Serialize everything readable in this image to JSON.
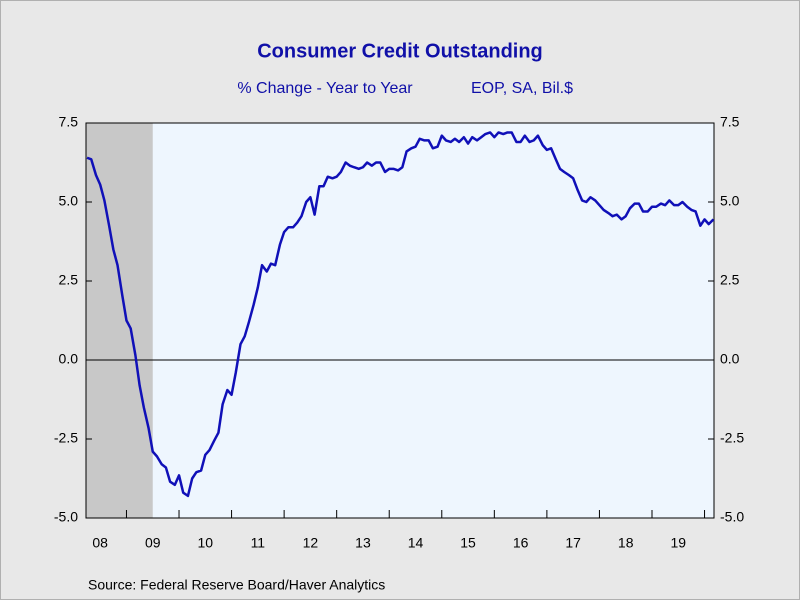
{
  "chart_data": {
    "type": "line",
    "title": "Consumer Credit Outstanding",
    "subtitle": "% Change - Year to Year",
    "subtitle_right": "EOP, SA, Bil.$",
    "source": "Source:  Federal Reserve Board/Haver Analytics",
    "xlim": [
      2008.23,
      2020.18
    ],
    "xticks": [
      {
        "value": 2008.5,
        "label": "08"
      },
      {
        "value": 2009.5,
        "label": "09"
      },
      {
        "value": 2010.5,
        "label": "10"
      },
      {
        "value": 2011.5,
        "label": "11"
      },
      {
        "value": 2012.5,
        "label": "12"
      },
      {
        "value": 2013.5,
        "label": "13"
      },
      {
        "value": 2014.5,
        "label": "14"
      },
      {
        "value": 2015.5,
        "label": "15"
      },
      {
        "value": 2016.5,
        "label": "16"
      },
      {
        "value": 2017.5,
        "label": "17"
      },
      {
        "value": 2018.5,
        "label": "18"
      },
      {
        "value": 2019.5,
        "label": "19"
      }
    ],
    "ylim": [
      -5,
      7.5
    ],
    "yticks": [
      {
        "value": -5,
        "label": "-5.0"
      },
      {
        "value": -2.5,
        "label": "-2.5"
      },
      {
        "value": 0,
        "label": "0.0"
      },
      {
        "value": 2.5,
        "label": "2.5"
      },
      {
        "value": 5,
        "label": "5.0"
      },
      {
        "value": 7.5,
        "label": "7.5"
      }
    ],
    "y2lim": [
      -5,
      7.5
    ],
    "y2ticks": [
      {
        "value": -5,
        "label": "-5.0"
      },
      {
        "value": -2.5,
        "label": "-2.5"
      },
      {
        "value": 0,
        "label": "0.0"
      },
      {
        "value": 2.5,
        "label": "2.5"
      },
      {
        "value": 5,
        "label": "5.0"
      },
      {
        "value": 7.5,
        "label": "7.5"
      }
    ],
    "recession": [
      2007.92,
      2009.5
    ],
    "recession_color": "#c8c8c8",
    "background": "#eef6fe",
    "x": [
      2008.25,
      2008.33,
      2008.42,
      2008.5,
      2008.58,
      2008.67,
      2008.75,
      2008.83,
      2008.92,
      2009,
      2009.08,
      2009.17,
      2009.25,
      2009.33,
      2009.42,
      2009.5,
      2009.58,
      2009.67,
      2009.75,
      2009.83,
      2009.92,
      2010,
      2010.08,
      2010.17,
      2010.25,
      2010.33,
      2010.42,
      2010.5,
      2010.58,
      2010.67,
      2010.75,
      2010.83,
      2010.92,
      2011,
      2011.08,
      2011.17,
      2011.25,
      2011.33,
      2011.42,
      2011.5,
      2011.58,
      2011.67,
      2011.75,
      2011.83,
      2011.92,
      2012,
      2012.08,
      2012.17,
      2012.25,
      2012.33,
      2012.42,
      2012.5,
      2012.58,
      2012.67,
      2012.75,
      2012.83,
      2012.92,
      2013,
      2013.08,
      2013.17,
      2013.25,
      2013.33,
      2013.42,
      2013.5,
      2013.58,
      2013.67,
      2013.75,
      2013.83,
      2013.92,
      2014,
      2014.08,
      2014.17,
      2014.25,
      2014.33,
      2014.42,
      2014.5,
      2014.58,
      2014.67,
      2014.75,
      2014.83,
      2014.92,
      2015,
      2015.08,
      2015.17,
      2015.25,
      2015.33,
      2015.42,
      2015.5,
      2015.58,
      2015.67,
      2015.75,
      2015.83,
      2015.92,
      2016,
      2016.08,
      2016.17,
      2016.25,
      2016.33,
      2016.42,
      2016.5,
      2016.58,
      2016.67,
      2016.75,
      2016.83,
      2016.92,
      2017,
      2017.08,
      2017.17,
      2017.25,
      2017.33,
      2017.42,
      2017.5,
      2017.58,
      2017.67,
      2017.75,
      2017.83,
      2017.92,
      2018,
      2018.08,
      2018.17,
      2018.25,
      2018.33,
      2018.42,
      2018.5,
      2018.58,
      2018.67,
      2018.75,
      2018.83,
      2018.92,
      2019,
      2019.08,
      2019.17,
      2019.25,
      2019.33,
      2019.42,
      2019.5,
      2019.58,
      2019.67,
      2019.75,
      2019.83,
      2019.92,
      2020,
      2020.08,
      2020.17
    ],
    "series": [
      {
        "color": "#1010b8",
        "values": [
          6.4,
          6.35,
          5.85,
          5.55,
          5.05,
          4.25,
          3.5,
          3.0,
          2.05,
          1.25,
          1.0,
          0.15,
          -0.8,
          -1.5,
          -2.15,
          -2.9,
          -3.05,
          -3.3,
          -3.4,
          -3.85,
          -3.95,
          -3.65,
          -4.2,
          -4.3,
          -3.75,
          -3.55,
          -3.5,
          -3.0,
          -2.85,
          -2.55,
          -2.3,
          -1.4,
          -0.95,
          -1.1,
          -0.4,
          0.5,
          0.75,
          1.2,
          1.75,
          2.3,
          3.0,
          2.8,
          3.05,
          3.0,
          3.65,
          4.05,
          4.2,
          4.2,
          4.35,
          4.55,
          5.0,
          5.15,
          4.6,
          5.5,
          5.5,
          5.8,
          5.75,
          5.8,
          5.95,
          6.25,
          6.15,
          6.1,
          6.05,
          6.1,
          6.25,
          6.15,
          6.25,
          6.25,
          5.95,
          6.05,
          6.05,
          6.0,
          6.1,
          6.6,
          6.7,
          6.75,
          7.0,
          6.95,
          6.95,
          6.7,
          6.75,
          7.1,
          6.95,
          6.9,
          7.0,
          6.9,
          7.05,
          6.85,
          7.05,
          6.95,
          7.05,
          7.15,
          7.2,
          7.05,
          7.2,
          7.15,
          7.2,
          7.2,
          6.9,
          6.9,
          7.1,
          6.9,
          6.95,
          7.1,
          6.8,
          6.65,
          6.7,
          6.35,
          6.05,
          5.95,
          5.85,
          5.75,
          5.4,
          5.05,
          5.0,
          5.15,
          5.05,
          4.9,
          4.75,
          4.65,
          4.55,
          4.6,
          4.45,
          4.55,
          4.8,
          4.95,
          4.95,
          4.7,
          4.7,
          4.85,
          4.85,
          4.95,
          4.9,
          5.05,
          4.9,
          4.9,
          5.0,
          4.85,
          4.75,
          4.7,
          4.25,
          4.45,
          4.3,
          4.45
        ]
      }
    ]
  }
}
